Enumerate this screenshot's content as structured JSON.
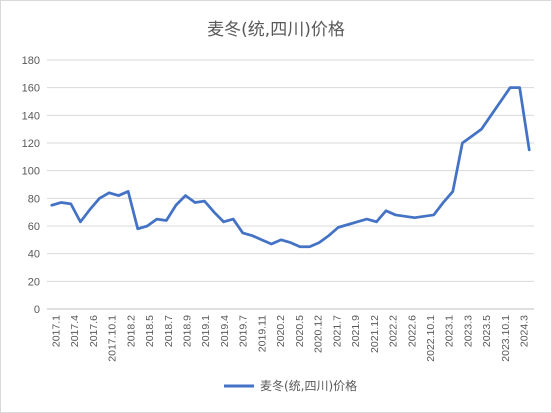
{
  "chart_data": {
    "type": "line",
    "title": "麦冬(统,四川)价格",
    "xlabel": "",
    "ylabel": "",
    "ylim": [
      0,
      180
    ],
    "yticks": [
      0,
      20,
      40,
      60,
      80,
      100,
      120,
      140,
      160,
      180
    ],
    "grid": true,
    "legend_position": "bottom",
    "color": "#4472C4",
    "x_tick_labels": [
      "2017.1",
      "2017.4",
      "2017.6",
      "2017.10.1",
      "2018.2",
      "2018.5",
      "2018.7",
      "2018.9",
      "2019.1",
      "2019.4",
      "2019.7",
      "2019.11",
      "2020.2",
      "2020.5",
      "2020.12",
      "2021.7",
      "2021.9",
      "2021.12",
      "2022.2",
      "2022.6",
      "2022.10.1",
      "2023.1",
      "2023.3",
      "2023.5",
      "2023.10.1",
      "2024.3"
    ],
    "series": [
      {
        "name": "麦冬(统,四川)价格",
        "values": [
          75,
          77,
          76,
          63,
          72,
          80,
          84,
          82,
          85,
          58,
          60,
          65,
          64,
          75,
          82,
          77,
          78,
          70,
          63,
          65,
          55,
          53,
          50,
          47,
          50,
          48,
          45,
          45,
          48,
          53,
          59,
          61,
          63,
          65,
          63,
          71,
          68,
          67,
          66,
          67,
          68,
          77,
          85,
          120,
          125,
          130,
          140,
          150,
          160,
          160,
          115
        ]
      }
    ]
  }
}
